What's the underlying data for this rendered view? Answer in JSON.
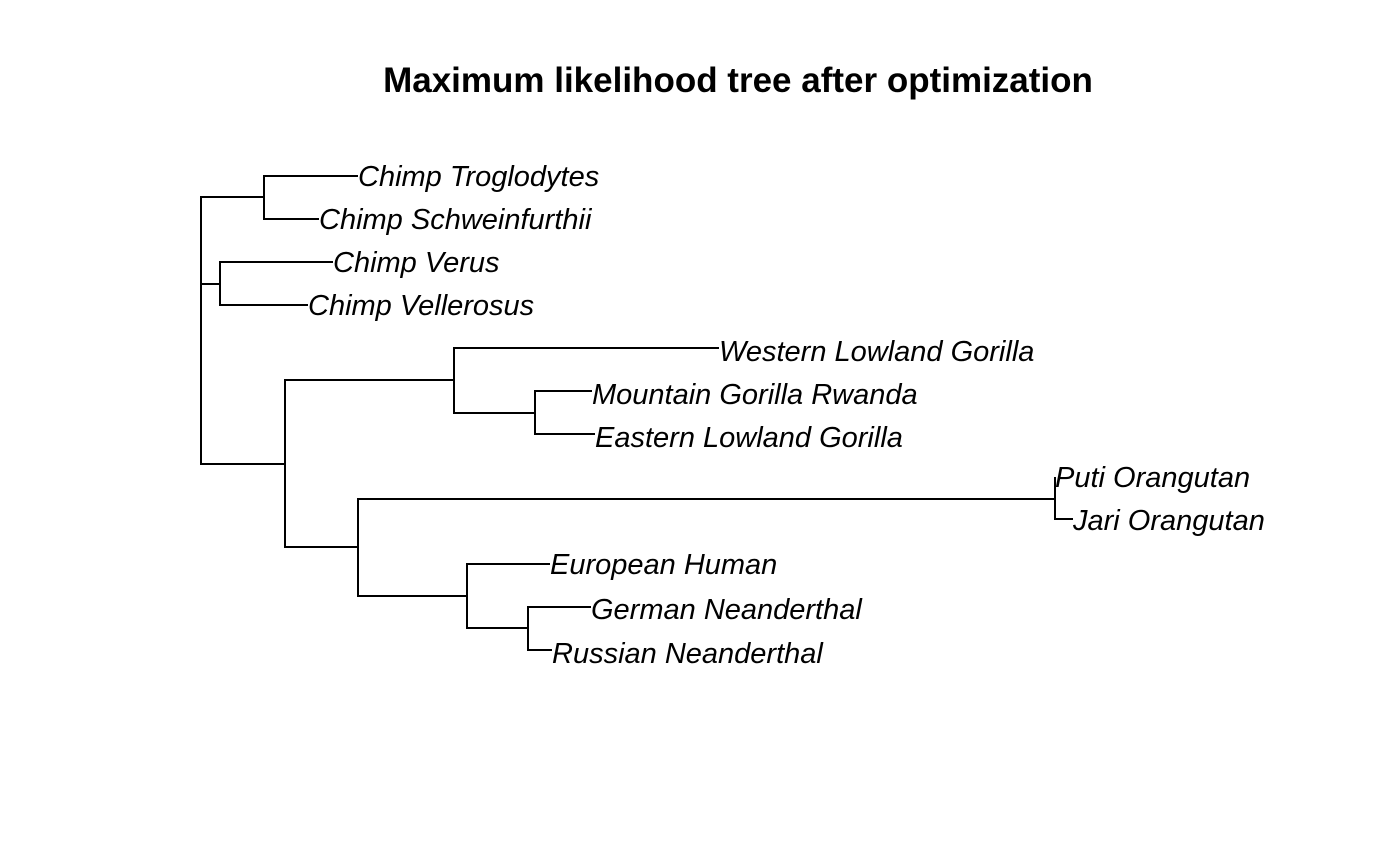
{
  "title": "Maximum likelihood tree after optimization",
  "tips": [
    "Chimp Troglodytes",
    "Chimp Schweinfurthii",
    "Chimp Verus",
    "Chimp Vellerosus",
    "Western Lowland Gorilla",
    "Mountain Gorilla Rwanda",
    "Eastern Lowland Gorilla",
    "Puti Orangutan",
    "Jari Orangutan",
    "European Human",
    "German Neanderthal",
    "Russian Neanderthal"
  ],
  "line_color": "#000000"
}
